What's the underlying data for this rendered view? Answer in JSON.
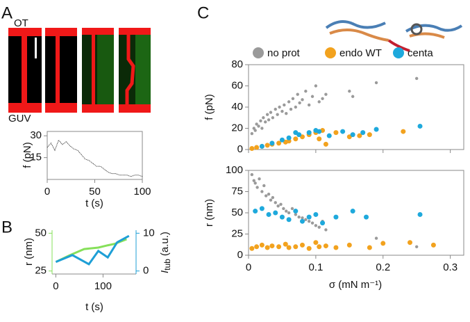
{
  "figure": {
    "panel_labels": [
      "A",
      "B",
      "C"
    ],
    "image_labels": [
      "OT",
      "GUV"
    ]
  },
  "chart_data": [
    {
      "type": "line",
      "xlabel": "t (s)",
      "ylabel": "f (pN)",
      "xlim": [
        0,
        100
      ],
      "ylim": [
        0,
        33
      ],
      "xticks": [
        0,
        50,
        100
      ],
      "yticks": [
        15,
        30
      ],
      "series": [
        {
          "color": "#222222",
          "x": [
            0,
            4,
            8,
            12,
            16,
            20,
            24,
            28,
            32,
            36,
            40,
            44,
            48,
            52,
            56,
            60,
            64,
            68,
            72,
            76,
            80,
            84,
            88,
            92,
            96,
            100
          ],
          "values": [
            22,
            25,
            20,
            27,
            24,
            26,
            23,
            21,
            20,
            17,
            14,
            13,
            11,
            9,
            9,
            7,
            5,
            4,
            4,
            3,
            3,
            3,
            2,
            3,
            3,
            2
          ]
        }
      ]
    },
    {
      "type": "dual_line",
      "xlabel": "t (s)",
      "ylabel": "r (nm)",
      "y2label": {
        "main": "I",
        "sub": "tub",
        "unit": "(a.u.)"
      },
      "xlim": [
        -8,
        170
      ],
      "ylim": [
        23,
        52
      ],
      "y2lim": [
        -0.8,
        10.8
      ],
      "xticks": [
        0,
        100
      ],
      "yticks": [
        25,
        50
      ],
      "y2ticks": [
        0,
        10
      ],
      "series": [
        {
          "color": "#86e05a",
          "x": [
            0,
            30,
            60,
            90,
            110,
            125,
            150
          ],
          "values": [
            31,
            35.5,
            39.5,
            40.5,
            42,
            43,
            46
          ]
        },
        {
          "color": "#1e9fd6",
          "axis": "y2",
          "x": [
            0,
            35,
            70,
            90,
            110,
            130,
            155
          ],
          "values": [
            2.4,
            4.2,
            1.8,
            5.3,
            3.6,
            7.6,
            9.3
          ]
        }
      ]
    },
    {
      "type": "scatter",
      "ylabel": "f (pN)",
      "xlim": [
        0,
        0.32
      ],
      "ylim": [
        0,
        80
      ],
      "xticks": [
        0,
        0.1,
        0.2,
        0.3
      ],
      "yticks": [
        0,
        20,
        40,
        60,
        80
      ],
      "series": [
        {
          "name": "no prot",
          "color": "#9a9a9a",
          "x": [
            0.005,
            0.008,
            0.01,
            0.012,
            0.015,
            0.018,
            0.02,
            0.022,
            0.025,
            0.028,
            0.03,
            0.033,
            0.036,
            0.04,
            0.043,
            0.046,
            0.05,
            0.053,
            0.056,
            0.06,
            0.063,
            0.066,
            0.07,
            0.073,
            0.076,
            0.08,
            0.085,
            0.09,
            0.095,
            0.1,
            0.105,
            0.11,
            0.115,
            0.15,
            0.155,
            0.19,
            0.25
          ],
          "y": [
            15,
            20,
            18,
            24,
            22,
            27,
            20,
            30,
            26,
            33,
            28,
            35,
            30,
            38,
            33,
            40,
            36,
            42,
            34,
            45,
            38,
            48,
            40,
            52,
            44,
            47,
            55,
            42,
            50,
            60,
            45,
            48,
            52,
            55,
            50,
            63,
            67
          ]
        },
        {
          "name": "endo WT",
          "color": "#f2a21e",
          "x": [
            0.005,
            0.012,
            0.02,
            0.028,
            0.035,
            0.045,
            0.055,
            0.06,
            0.07,
            0.08,
            0.09,
            0.1,
            0.105,
            0.11,
            0.115,
            0.13,
            0.15,
            0.165,
            0.18,
            0.23
          ],
          "y": [
            1,
            2,
            3,
            4,
            5,
            6,
            7,
            8,
            10,
            12,
            14,
            16,
            10,
            18,
            5,
            16,
            12,
            13,
            14,
            17
          ]
        },
        {
          "name": "centa",
          "color": "#1ea9dc",
          "x": [
            0.02,
            0.035,
            0.05,
            0.06,
            0.07,
            0.075,
            0.09,
            0.1,
            0.105,
            0.12,
            0.14,
            0.155,
            0.17,
            0.19,
            0.255
          ],
          "y": [
            3,
            6,
            9,
            11,
            16,
            14,
            16,
            18,
            17,
            13,
            17,
            14,
            16,
            19,
            22
          ]
        }
      ]
    },
    {
      "type": "scatter",
      "xlabel": "σ (mN m⁻¹)",
      "ylabel": "r (nm)",
      "xlim": [
        0,
        0.32
      ],
      "ylim": [
        0,
        100
      ],
      "xticks": [
        0,
        0.1,
        0.2,
        0.3
      ],
      "yticks": [
        0,
        25,
        50,
        75,
        100
      ],
      "series": [
        {
          "color": "#9a9a9a",
          "x": [
            0.005,
            0.008,
            0.01,
            0.013,
            0.016,
            0.02,
            0.023,
            0.026,
            0.03,
            0.033,
            0.036,
            0.04,
            0.044,
            0.048,
            0.052,
            0.056,
            0.06,
            0.065,
            0.07,
            0.075,
            0.08,
            0.085,
            0.09,
            0.095,
            0.1,
            0.105,
            0.11,
            0.115,
            0.19,
            0.2,
            0.25
          ],
          "y": [
            95,
            88,
            85,
            80,
            90,
            75,
            82,
            70,
            72,
            65,
            68,
            62,
            58,
            60,
            55,
            52,
            50,
            55,
            48,
            45,
            44,
            42,
            40,
            38,
            35,
            33,
            40,
            30,
            20,
            15,
            10
          ]
        },
        {
          "color": "#f2a21e",
          "x": [
            0.005,
            0.012,
            0.02,
            0.028,
            0.035,
            0.045,
            0.055,
            0.06,
            0.07,
            0.08,
            0.09,
            0.1,
            0.105,
            0.115,
            0.13,
            0.15,
            0.18,
            0.2,
            0.24,
            0.275
          ],
          "y": [
            8,
            10,
            12,
            9,
            11,
            10,
            13,
            9,
            10,
            12,
            8,
            15,
            10,
            11,
            9,
            12,
            9,
            14,
            15,
            12
          ]
        },
        {
          "color": "#1ea9dc",
          "x": [
            0.01,
            0.02,
            0.03,
            0.04,
            0.05,
            0.06,
            0.07,
            0.08,
            0.09,
            0.1,
            0.11,
            0.13,
            0.155,
            0.175,
            0.255
          ],
          "y": [
            52,
            55,
            48,
            50,
            45,
            42,
            52,
            40,
            45,
            48,
            38,
            45,
            52,
            45,
            48
          ]
        }
      ]
    }
  ]
}
